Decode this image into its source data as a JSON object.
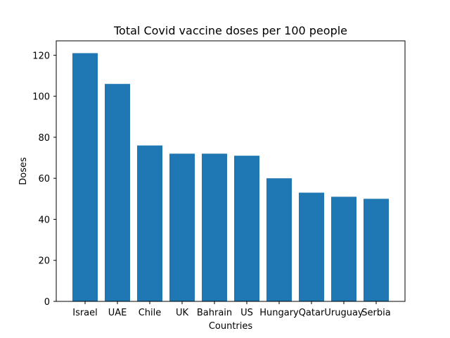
{
  "chart_data": {
    "type": "bar",
    "title": "Total Covid vaccine doses per 100 people",
    "xlabel": "Countries",
    "ylabel": "Doses",
    "categories": [
      "Israel",
      "UAE",
      "Chile",
      "UK",
      "Bahrain",
      "US",
      "Hungary",
      "Qatar",
      "Uruguay",
      "Serbia"
    ],
    "values": [
      121,
      106,
      76,
      72,
      72,
      71,
      60,
      53,
      51,
      50
    ],
    "ylim": [
      0,
      127
    ],
    "yticks": [
      0,
      20,
      40,
      60,
      80,
      100,
      120
    ],
    "bar_color": "#1f77b4",
    "grid": false,
    "legend": "none"
  }
}
